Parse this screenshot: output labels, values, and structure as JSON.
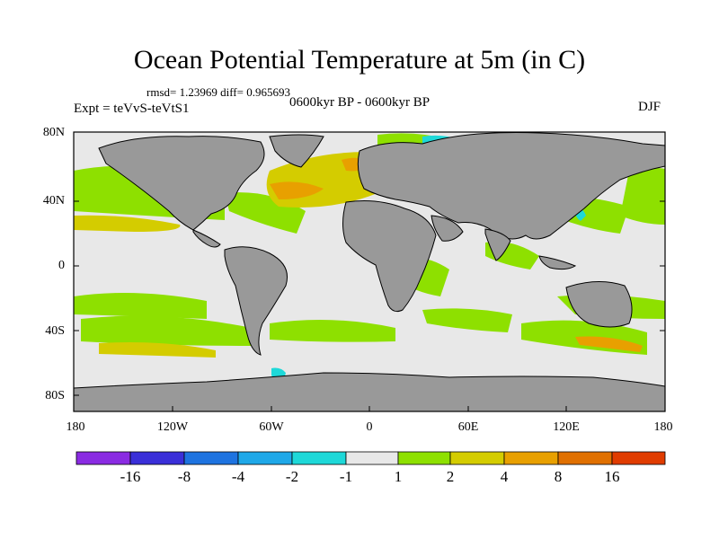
{
  "title": "Ocean Potential Temperature at 5m (in C)",
  "stats": "rmsd= 1.23969  diff= 0.965693",
  "experiment": "Expt = teVvS-teVtS1",
  "period": "0600kyr BP - 0600kyr BP",
  "season": "DJF",
  "axes": {
    "y_ticks": [
      "80N",
      "40N",
      "0",
      "40S",
      "80S"
    ],
    "x_ticks": [
      "180",
      "120W",
      "60W",
      "0",
      "60E",
      "120E",
      "180"
    ]
  },
  "colorbar": {
    "labels": [
      "-16",
      "-8",
      "-4",
      "-2",
      "-1",
      "1",
      "2",
      "4",
      "8",
      "16"
    ],
    "colors": [
      "#8a2be2",
      "#3a2fd8",
      "#1e73e0",
      "#1fa8e8",
      "#1ed8d8",
      "#e8e8e8",
      "#8ee000",
      "#d4cc00",
      "#e8a000",
      "#e07000",
      "#e03c00"
    ]
  },
  "palette": {
    "land": "#999999",
    "frame": "#000000",
    "neutral": "#e8e8e8"
  }
}
